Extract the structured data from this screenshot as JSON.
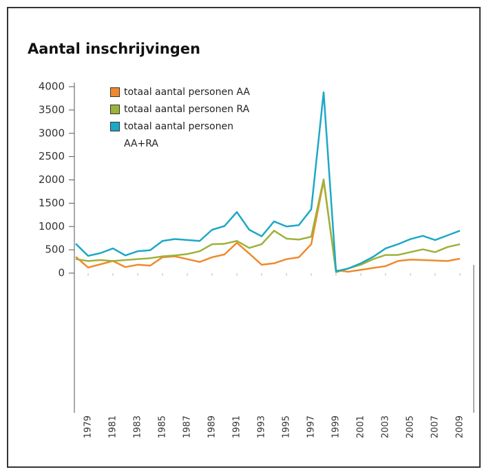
{
  "chart_data": {
    "type": "line",
    "title": "Aantal inschrijvingen",
    "x": [
      1978,
      1979,
      1980,
      1981,
      1982,
      1983,
      1984,
      1985,
      1986,
      1987,
      1988,
      1989,
      1990,
      1991,
      1992,
      1993,
      1994,
      1995,
      1996,
      1997,
      1998,
      1999,
      2000,
      2001,
      2002,
      2003,
      2004,
      2005,
      2006,
      2007,
      2008,
      2009
    ],
    "series": [
      {
        "name": "totaal aantal personen AA",
        "color": "#f0892c",
        "values": [
          350,
          120,
          190,
          260,
          130,
          180,
          160,
          340,
          360,
          300,
          240,
          340,
          400,
          650,
          420,
          180,
          210,
          300,
          340,
          620,
          1980,
          60,
          30,
          70,
          110,
          150,
          260,
          290,
          280,
          270,
          260,
          310
        ]
      },
      {
        "name": "totaal aantal personen RA",
        "color": "#9db23a",
        "values": [
          300,
          260,
          280,
          260,
          280,
          300,
          320,
          360,
          380,
          410,
          470,
          620,
          630,
          690,
          540,
          620,
          910,
          740,
          720,
          780,
          2010,
          20,
          100,
          180,
          300,
          390,
          390,
          450,
          510,
          450,
          560,
          620
        ]
      },
      {
        "name": "totaal aantal personen AA+RA",
        "color": "#1ca8c6",
        "values": [
          630,
          370,
          430,
          530,
          380,
          470,
          490,
          690,
          730,
          710,
          690,
          930,
          1010,
          1310,
          930,
          790,
          1110,
          1000,
          1030,
          1370,
          3880,
          40,
          100,
          210,
          350,
          530,
          620,
          730,
          800,
          710,
          810,
          910
        ]
      }
    ],
    "xlim": [
      1978,
      2009
    ],
    "xticks": [
      1979,
      1981,
      1983,
      1985,
      1987,
      1989,
      1991,
      1993,
      1995,
      1997,
      1999,
      2001,
      2003,
      2005,
      2007,
      2009
    ],
    "ylim": [
      0,
      4000
    ],
    "yticks": [
      0,
      500,
      1000,
      1500,
      2000,
      2500,
      3000,
      3500,
      4000
    ],
    "legend": "top-left"
  }
}
